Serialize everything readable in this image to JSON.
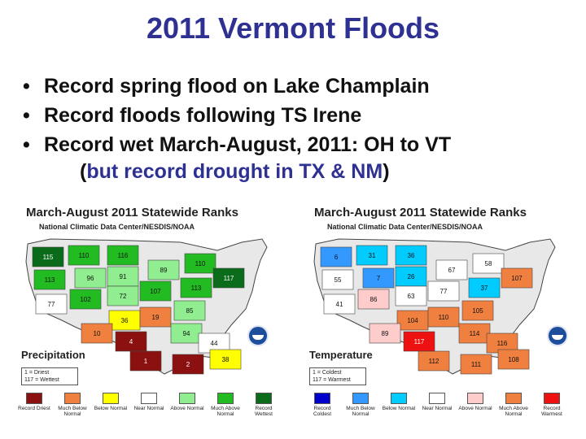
{
  "slide": {
    "title": "2011 Vermont Floods",
    "bullets": [
      {
        "dot": "•",
        "text": "Record spring flood on Lake Champlain"
      },
      {
        "dot": "•",
        "text": "Record floods following TS Irene"
      },
      {
        "dot": "•",
        "text": "Record wet March-August, 2011: OH to VT"
      }
    ],
    "note": {
      "open": "(",
      "text": "but record drought in TX & NM",
      "close": ")"
    }
  },
  "precip_map": {
    "title": "March-August 2011 Statewide Ranks",
    "subtitle": "National Climatic Data Center/NESDIS/NOAA",
    "label": "Precipitation",
    "scale": [
      "1 = Driest",
      "117 = Wettest"
    ],
    "legend": [
      {
        "label": "Record Driest",
        "color": "#8b1010"
      },
      {
        "label": "Much Below Normal",
        "color": "#f08040"
      },
      {
        "label": "Below Normal",
        "color": "#ffff00"
      },
      {
        "label": "Near Normal",
        "color": "#ffffff"
      },
      {
        "label": "Above Normal",
        "color": "#90ee90"
      },
      {
        "label": "Much Above Normal",
        "color": "#22bb22"
      },
      {
        "label": "Record Wettest",
        "color": "#0a6b1a"
      }
    ],
    "ranks": [
      {
        "n": "115",
        "c": "#0a6b1a"
      },
      {
        "n": "110",
        "c": "#22bb22"
      },
      {
        "n": "116",
        "c": "#22bb22"
      },
      {
        "n": "113",
        "c": "#22bb22"
      },
      {
        "n": "96",
        "c": "#90ee90"
      },
      {
        "n": "91",
        "c": "#90ee90"
      },
      {
        "n": "89",
        "c": "#90ee90"
      },
      {
        "n": "110",
        "c": "#22bb22"
      },
      {
        "n": "77",
        "c": "#ffffff"
      },
      {
        "n": "102",
        "c": "#22bb22"
      },
      {
        "n": "72",
        "c": "#90ee90"
      },
      {
        "n": "107",
        "c": "#22bb22"
      },
      {
        "n": "113",
        "c": "#22bb22"
      },
      {
        "n": "36",
        "c": "#ffff00"
      },
      {
        "n": "19",
        "c": "#f08040"
      },
      {
        "n": "85",
        "c": "#90ee90"
      },
      {
        "n": "117",
        "c": "#0a6b1a"
      },
      {
        "n": "10",
        "c": "#f08040"
      },
      {
        "n": "4",
        "c": "#8b1010"
      },
      {
        "n": "94",
        "c": "#90ee90"
      },
      {
        "n": "1",
        "c": "#8b1010"
      },
      {
        "n": "2",
        "c": "#8b1010"
      },
      {
        "n": "44",
        "c": "#ffffff"
      },
      {
        "n": "38",
        "c": "#ffff00"
      }
    ]
  },
  "temp_map": {
    "title": "March-August 2011 Statewide Ranks",
    "subtitle": "National Climatic Data Center/NESDIS/NOAA",
    "label": "Temperature",
    "scale": [
      "1 = Coldest",
      "117 = Warmest"
    ],
    "legend": [
      {
        "label": "Record Coldest",
        "color": "#0000cc"
      },
      {
        "label": "Much Below Normal",
        "color": "#3399ff"
      },
      {
        "label": "Below Normal",
        "color": "#00ccff"
      },
      {
        "label": "Near Normal",
        "color": "#ffffff"
      },
      {
        "label": "Above Normal",
        "color": "#ffcccc"
      },
      {
        "label": "Much Above Normal",
        "color": "#f08040"
      },
      {
        "label": "Record Warmest",
        "color": "#ee1111"
      }
    ],
    "ranks": [
      {
        "n": "6",
        "c": "#3399ff"
      },
      {
        "n": "31",
        "c": "#00ccff"
      },
      {
        "n": "36",
        "c": "#00ccff"
      },
      {
        "n": "55",
        "c": "#ffffff"
      },
      {
        "n": "7",
        "c": "#3399ff"
      },
      {
        "n": "26",
        "c": "#00ccff"
      },
      {
        "n": "67",
        "c": "#ffffff"
      },
      {
        "n": "58",
        "c": "#ffffff"
      },
      {
        "n": "41",
        "c": "#ffffff"
      },
      {
        "n": "86",
        "c": "#ffcccc"
      },
      {
        "n": "63",
        "c": "#ffffff"
      },
      {
        "n": "77",
        "c": "#ffffff"
      },
      {
        "n": "37",
        "c": "#00ccff"
      },
      {
        "n": "104",
        "c": "#f08040"
      },
      {
        "n": "110",
        "c": "#f08040"
      },
      {
        "n": "105",
        "c": "#f08040"
      },
      {
        "n": "107",
        "c": "#f08040"
      },
      {
        "n": "89",
        "c": "#ffcccc"
      },
      {
        "n": "117",
        "c": "#ee1111"
      },
      {
        "n": "114",
        "c": "#f08040"
      },
      {
        "n": "112",
        "c": "#f08040"
      },
      {
        "n": "111",
        "c": "#f08040"
      },
      {
        "n": "116",
        "c": "#f08040"
      },
      {
        "n": "108",
        "c": "#f08040"
      }
    ]
  }
}
